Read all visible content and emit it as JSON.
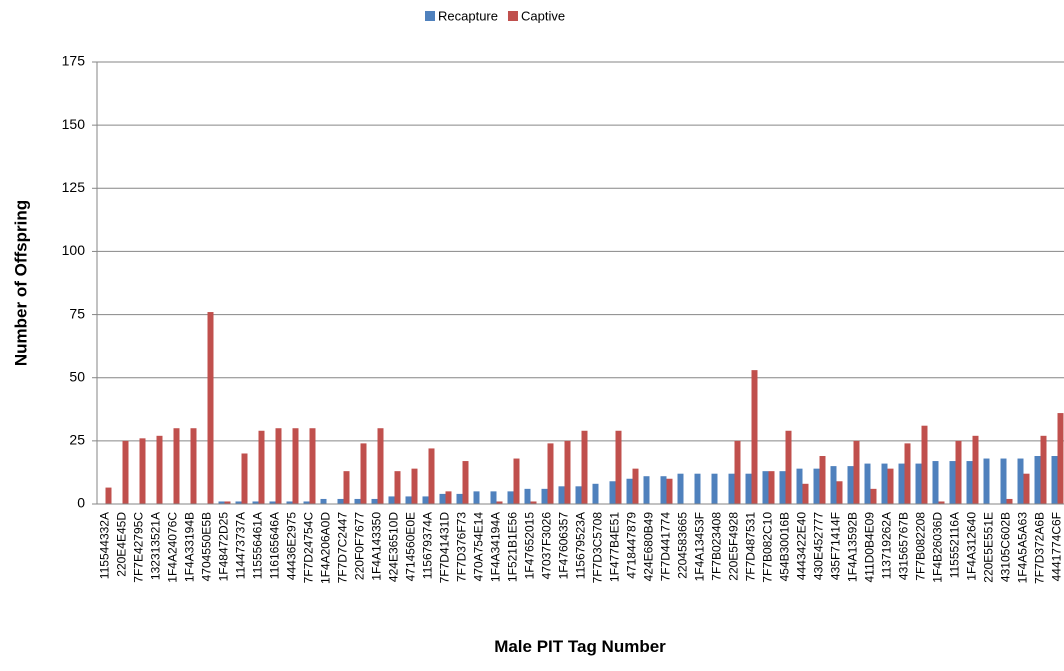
{
  "chart_data": {
    "type": "bar",
    "x_label": "Male PIT Tag Number",
    "y_label": "Number of Offspring",
    "categories": [
      "115544332A",
      "220E4E45D",
      "7F7E42795C",
      "132313521A",
      "1F4A24076C",
      "1F4A33194B",
      "4704550E5B",
      "1F48472D25",
      "114473737A",
      "115556461A",
      "116165646A",
      "44436E2975",
      "7F7D24754C",
      "1F4A206A0D",
      "7F7D7C2447",
      "220F0F7677",
      "1F4A143350",
      "424E36510D",
      "4714560E0E",
      "115679374A",
      "7F7D41431D",
      "7F7D376F73",
      "470A754E14",
      "1F4A34194A",
      "1F521B1E56",
      "1F47652015",
      "47037F3026",
      "1F47606357",
      "115679523A",
      "7F7D3C5708",
      "1F477B4E51",
      "4718447879",
      "424E680B49",
      "7F7D441774",
      "2204583665",
      "1F4A13453F",
      "7F7B023408",
      "220E5F4928",
      "7F7D487531",
      "7F7B082C10",
      "454B30016B",
      "4443422E40",
      "430E452777",
      "435F71414F",
      "1F4A13592B",
      "411D0B4E09",
      "113719262A",
      "431565767B",
      "7F7B082208",
      "1F4B26036D",
      "115552116A",
      "1F4A312640",
      "220E5E551E",
      "43105C602B",
      "1F4A5A5A63",
      "7F7D372A6B",
      "4441774C6F"
    ],
    "series": [
      {
        "name": "Recapture",
        "color": "#4f81bd",
        "values": [
          0,
          0,
          0,
          0,
          0,
          0,
          0,
          1,
          1,
          1,
          1,
          1,
          1,
          2,
          2,
          2,
          2,
          3,
          3,
          3,
          4,
          4,
          5,
          5,
          5,
          6,
          6,
          7,
          7,
          8,
          9,
          10,
          11,
          11,
          12,
          12,
          12,
          12,
          12,
          13,
          13,
          14,
          14,
          15,
          15,
          16,
          16,
          16,
          16,
          17,
          17,
          17,
          18,
          18,
          18,
          19,
          19
        ]
      },
      {
        "name": "Captive",
        "color": "#c0504d",
        "values": [
          6.5,
          25,
          26,
          27,
          30,
          30,
          76,
          1,
          20,
          29,
          30,
          30,
          30,
          0,
          13,
          24,
          30,
          13,
          14,
          22,
          5,
          17,
          0,
          1,
          18,
          1,
          24,
          25,
          29,
          0,
          29,
          14,
          0,
          10,
          0,
          0,
          0,
          25,
          53,
          13,
          29,
          8,
          19,
          9,
          25,
          6,
          14,
          24,
          31,
          1,
          25,
          27,
          0,
          2,
          12,
          27,
          36
        ]
      }
    ],
    "ylim": [
      0,
      175
    ],
    "yticks": [
      0,
      25,
      50,
      75,
      100,
      125,
      150,
      175
    ],
    "grid": true,
    "legend": "top"
  }
}
